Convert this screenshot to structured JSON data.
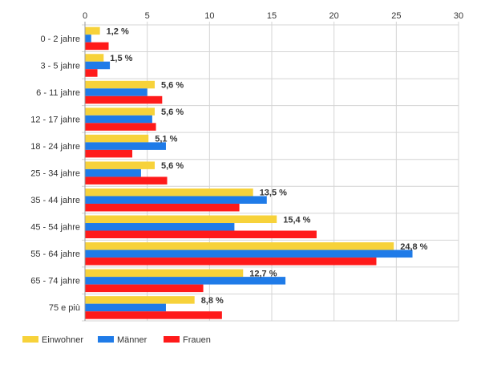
{
  "chart_data": {
    "type": "bar",
    "orientation": "horizontal",
    "title": "",
    "xlabel": "",
    "ylabel": "",
    "xlim": [
      0,
      30
    ],
    "xticks": [
      0,
      5,
      10,
      15,
      20,
      25,
      30
    ],
    "x_axis_position": "top",
    "grid": true,
    "legend_position": "bottom-left",
    "categories": [
      "0 - 2 jahre",
      "3 - 5 jahre",
      "6 - 11 jahre",
      "12 - 17 jahre",
      "18 - 24 jahre",
      "25 - 34 jahre",
      "35 - 44 jahre",
      "45 - 54 jahre",
      "55 - 64 jahre",
      "65 - 74 jahre",
      "75 e più"
    ],
    "series": [
      {
        "name": "Einwohner",
        "color": "#f7d23a",
        "values": [
          1.2,
          1.5,
          5.6,
          5.6,
          5.1,
          5.6,
          13.5,
          15.4,
          24.8,
          12.7,
          8.8
        ]
      },
      {
        "name": "Männer",
        "color": "#1f7be8",
        "values": [
          0.5,
          2.0,
          5.0,
          5.4,
          6.5,
          4.5,
          14.6,
          12.0,
          26.3,
          16.1,
          6.5
        ]
      },
      {
        "name": "Frauen",
        "color": "#ff1a1a",
        "values": [
          1.9,
          1.0,
          6.2,
          5.7,
          3.8,
          6.6,
          12.4,
          18.6,
          23.4,
          9.5,
          11.0
        ]
      }
    ],
    "data_labels": [
      "1,2 %",
      "1,5 %",
      "5,6 %",
      "5,6 %",
      "5,1 %",
      "5,6 %",
      "13,5 %",
      "15,4 %",
      "24,8 %",
      "12,7 %",
      "8,8 %"
    ]
  }
}
